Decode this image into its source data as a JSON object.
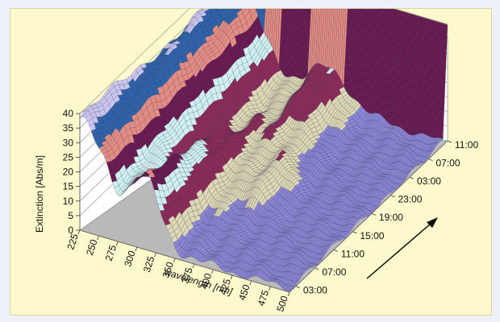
{
  "chart_data": {
    "type": "surface",
    "title": "",
    "xlabel": "wavelength [nm]",
    "ylabel": "Extinction [Abs/m]",
    "zlabel": "",
    "x_ticks": [
      "225",
      "250",
      "275",
      "300",
      "325",
      "350",
      "375",
      "400",
      "425",
      "450",
      "475",
      "500"
    ],
    "y_ticks": [
      "0",
      "5",
      "10",
      "15",
      "20",
      "25",
      "30",
      "35",
      "40"
    ],
    "time_ticks": [
      "03:00",
      "07:00",
      "11:00",
      "15:00",
      "19:00",
      "23:00",
      "03:00",
      "07:00",
      "11:00"
    ],
    "wavelength_range": [
      225,
      500
    ],
    "extinction_range": [
      0,
      40
    ],
    "arrow": "time direction (bottom-left to top-right)",
    "colors": {
      "floor": "#b9b9b9",
      "walls": "#ffffff",
      "grid": "#8a8a8a",
      "surface_top": "#10154a",
      "surface_low": "#8b86d6"
    },
    "color_bands": [
      {
        "from": 0,
        "to": 5,
        "color": "#8b86d6"
      },
      {
        "from": 5,
        "to": 10,
        "color": "#ddd8b6"
      },
      {
        "from": 10,
        "to": 15,
        "color": "#8c2b5a"
      },
      {
        "from": 15,
        "to": 20,
        "color": "#cfeff0"
      },
      {
        "from": 20,
        "to": 25,
        "color": "#6a1a52"
      },
      {
        "from": 25,
        "to": 30,
        "color": "#e38c84"
      },
      {
        "from": 30,
        "to": 35,
        "color": "#2e62aa"
      },
      {
        "from": 35,
        "to": 40,
        "color": "#c9c5f0"
      }
    ]
  }
}
